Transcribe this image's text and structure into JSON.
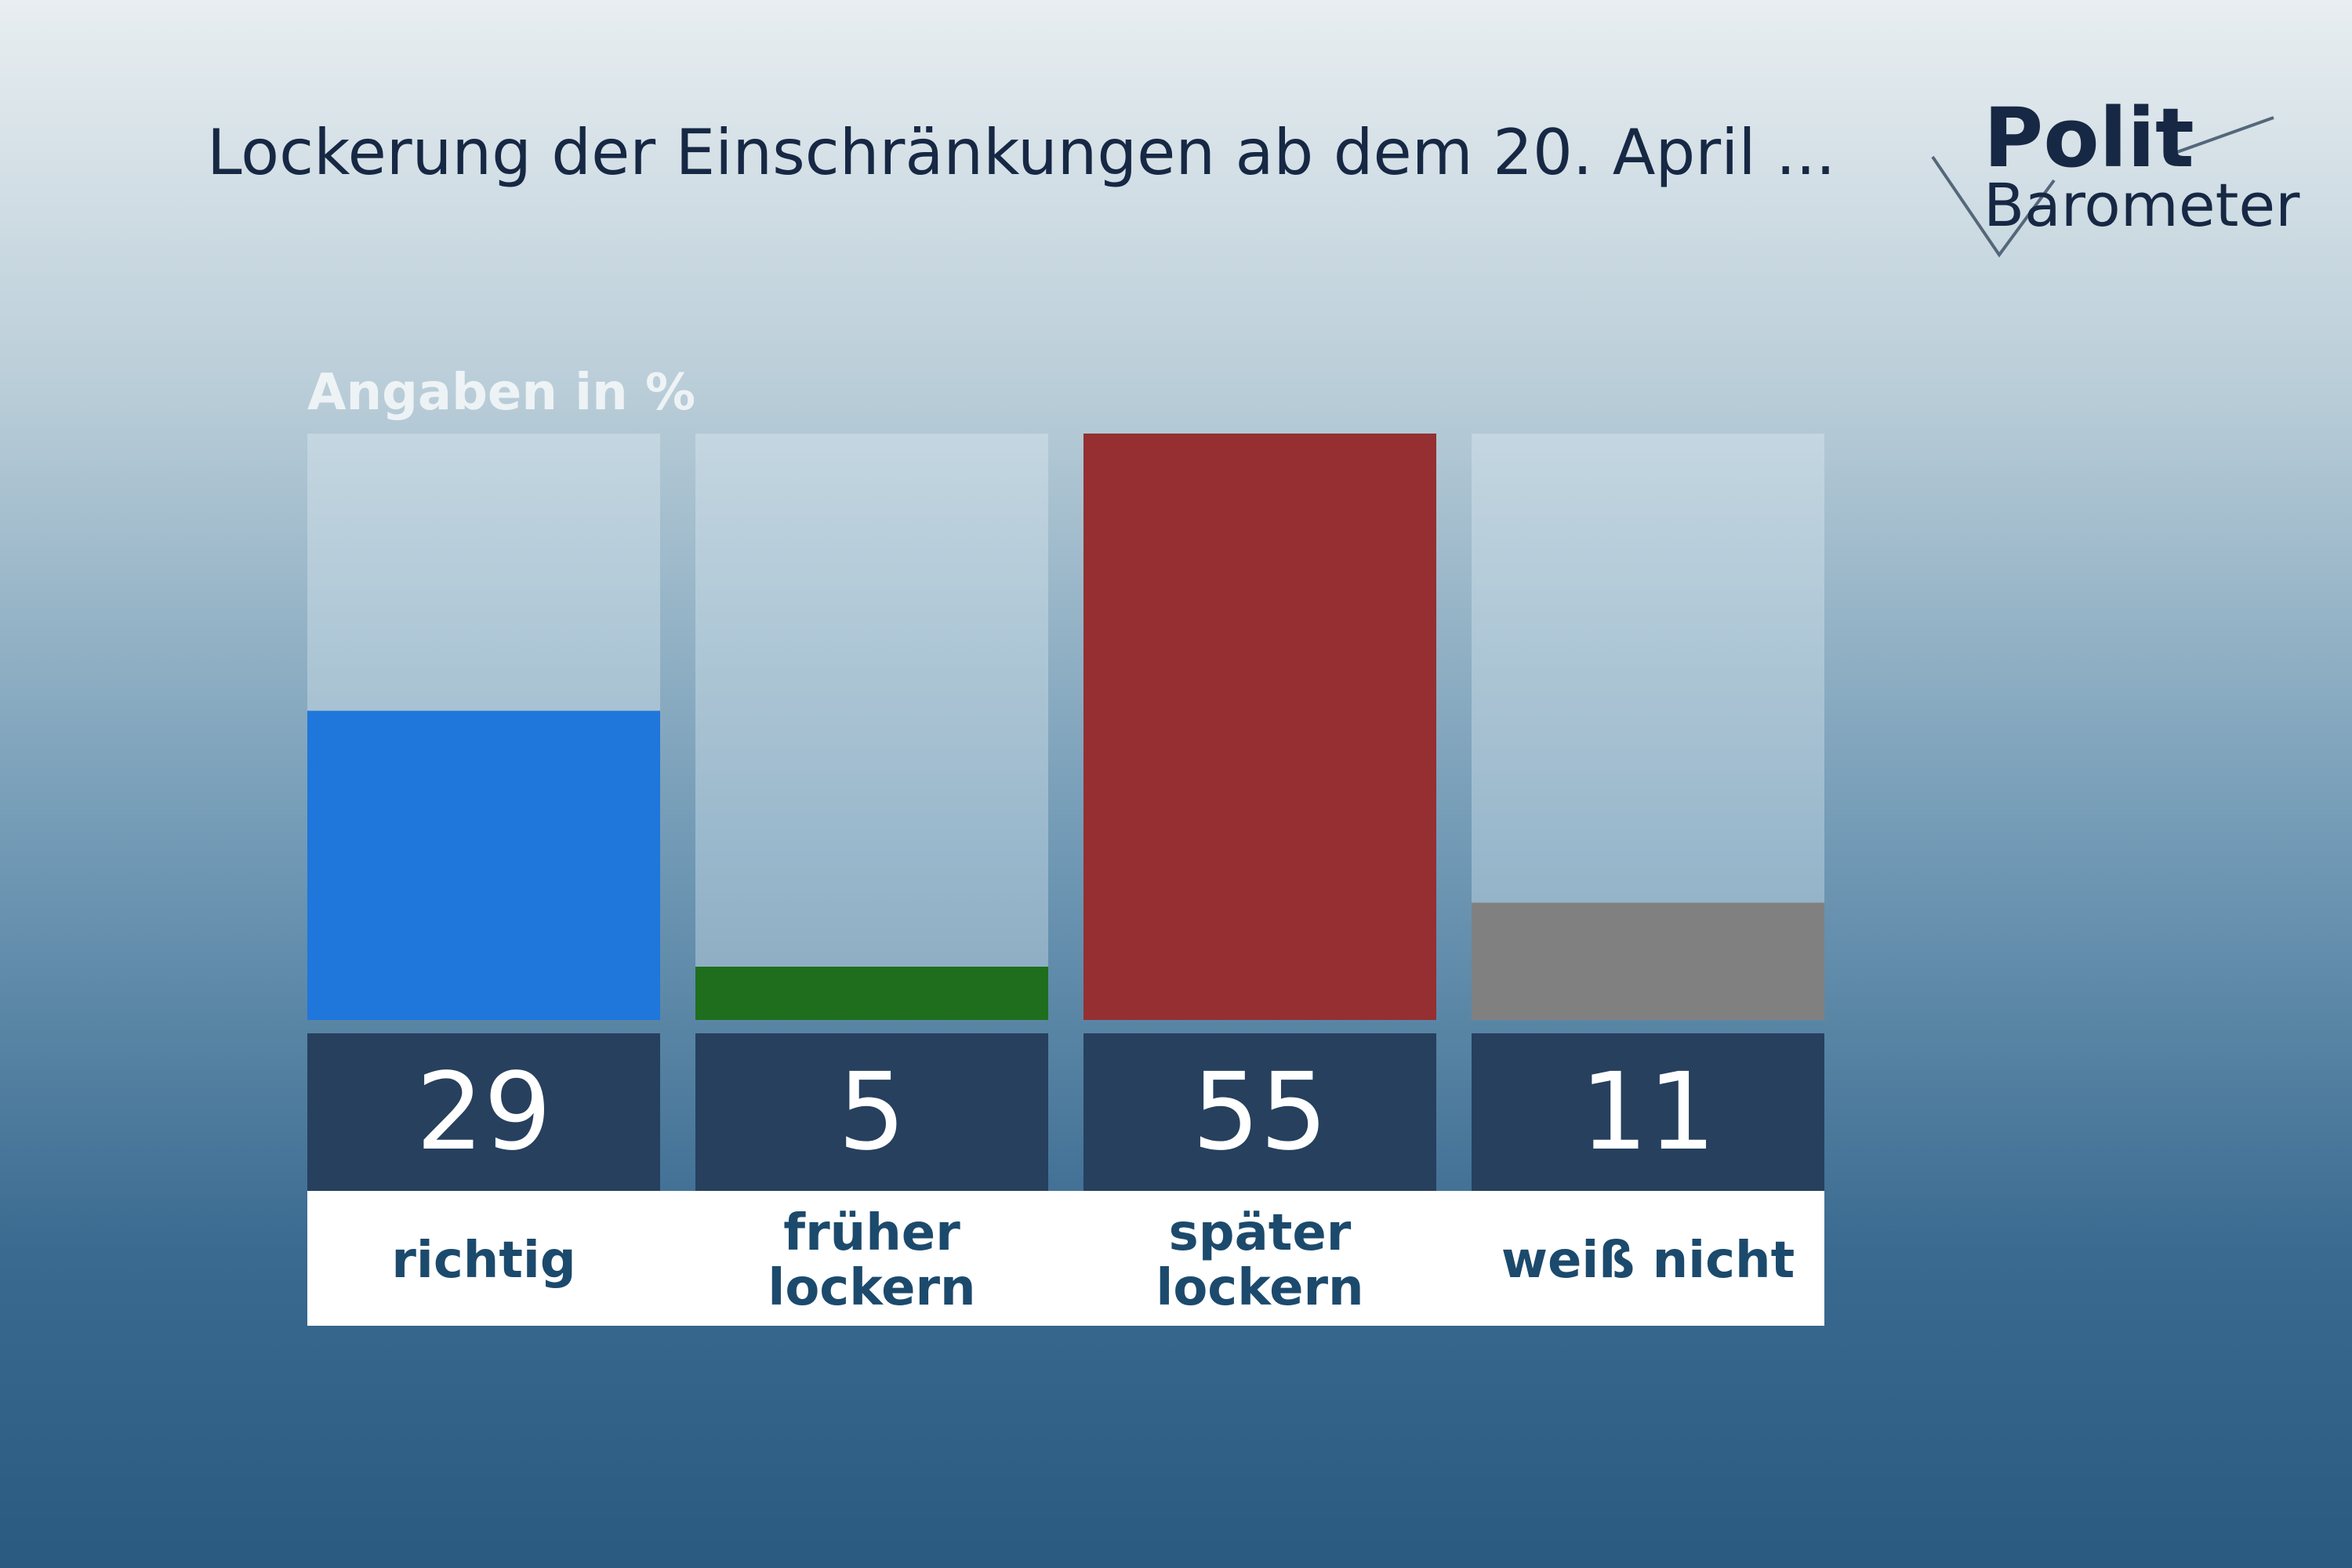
{
  "chart_data": {
    "type": "bar",
    "title": "Lockerung der Einschränkungen ab dem 20. April ...",
    "subtitle": "Angaben in %",
    "logo": {
      "top": "Polit",
      "bottom": "Barometer"
    },
    "categories": [
      "richtig",
      "früher\nlockern",
      "später\nlockern",
      "weiß nicht"
    ],
    "values": [
      29,
      5,
      55,
      11
    ],
    "colors": [
      "#1f76db",
      "#1e6e1e",
      "#952f31",
      "#808080"
    ],
    "ylim": [
      0,
      55
    ]
  }
}
